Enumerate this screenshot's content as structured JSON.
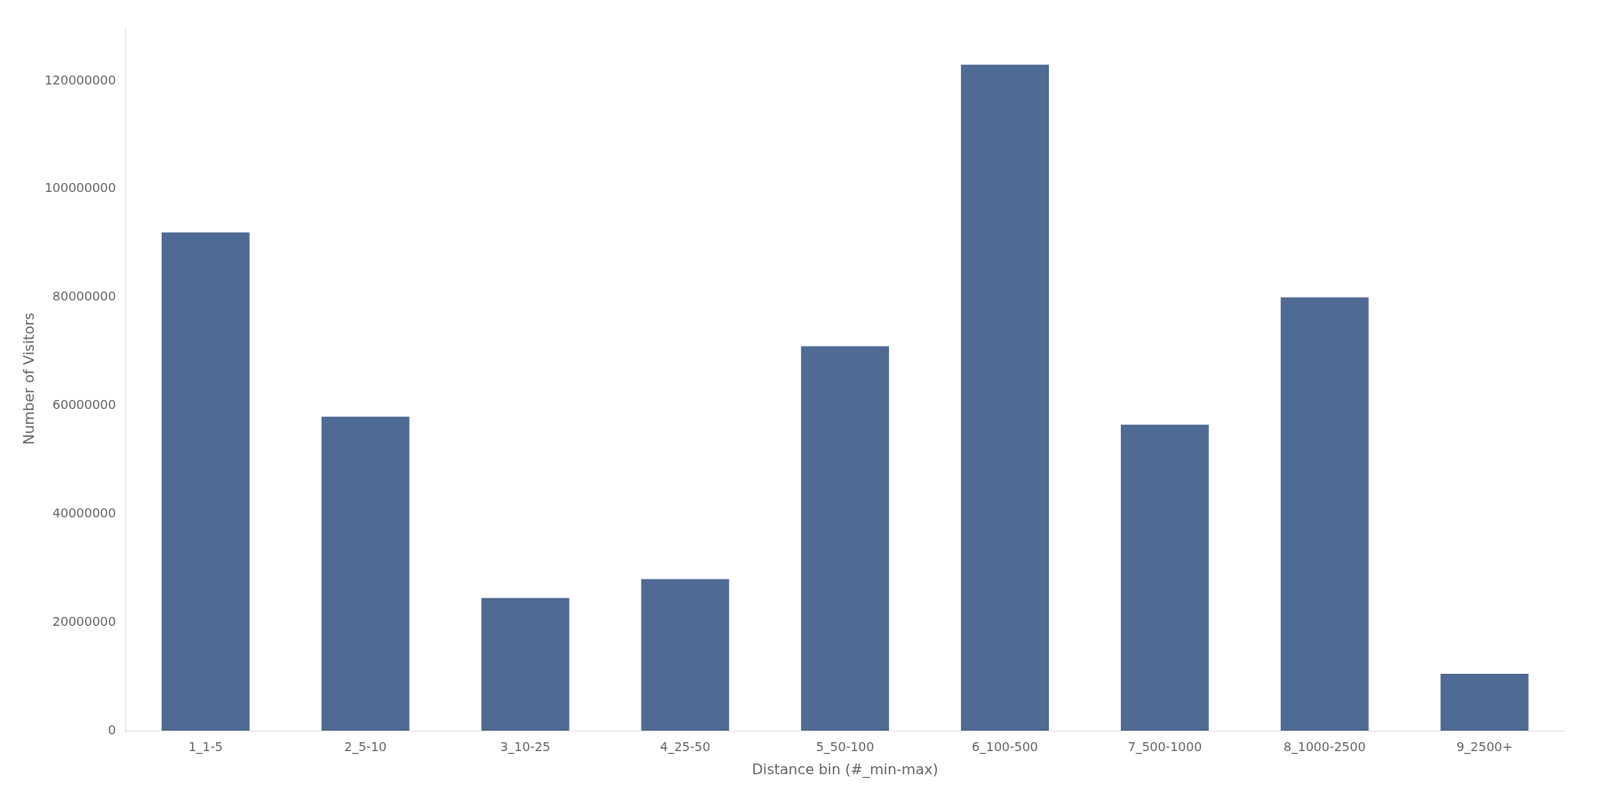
{
  "chart_data": {
    "type": "bar",
    "categories": [
      "1_1-5",
      "2_5-10",
      "3_10-25",
      "4_25-50",
      "5_50-100",
      "6_100-500",
      "7_500-1000",
      "8_1000-2500",
      "9_2500+"
    ],
    "values": [
      92000000,
      58000000,
      24500000,
      28000000,
      71000000,
      123000000,
      56500000,
      80000000,
      10500000
    ],
    "color": "#4f6a93",
    "xlabel": "Distance bin (#_min-max)",
    "ylabel": "Number of Visitors",
    "ylim": [
      0,
      130000000
    ],
    "yticks": [
      0,
      20000000,
      40000000,
      60000000,
      80000000,
      100000000,
      120000000
    ],
    "grid": false
  }
}
